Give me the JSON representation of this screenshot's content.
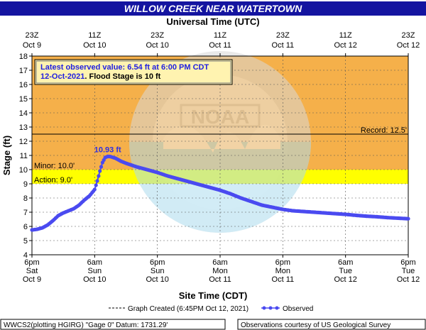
{
  "colors": {
    "title_bar": "#1414a0",
    "title_text": "#ffffff",
    "record_zone": "#f5b04a",
    "minor_zone": "#ffff00",
    "series": "#4a4af0",
    "ref_line": "#000000"
  },
  "icons": [
    "noaa-watermark-icon"
  ],
  "chart_data": {
    "type": "line",
    "title": "WILLOW CREEK NEAR WATERTOWN",
    "top_axis_title": "Universal Time (UTC)",
    "xlabel": "Site Time (CDT)",
    "ylabel": "Stage (ft)",
    "ylim": [
      4,
      18
    ],
    "yticks": [
      4,
      5,
      6,
      7,
      8,
      9,
      10,
      11,
      12,
      13,
      14,
      15,
      16,
      17,
      18
    ],
    "xlim_hours": [
      0,
      60
    ],
    "x_ticks_bottom": [
      {
        "h": 0,
        "l1": "6pm",
        "l2": "Sat",
        "l3": "Oct 9"
      },
      {
        "h": 12,
        "l1": "6am",
        "l2": "Sun",
        "l3": "Oct 10"
      },
      {
        "h": 24,
        "l1": "6pm",
        "l2": "Sun",
        "l3": "Oct 10"
      },
      {
        "h": 36,
        "l1": "6am",
        "l2": "Mon",
        "l3": "Oct 11"
      },
      {
        "h": 48,
        "l1": "6pm",
        "l2": "Mon",
        "l3": "Oct 11"
      },
      {
        "h": 60,
        "l1": "6am",
        "l2": "Tue",
        "l3": "Oct 12"
      },
      {
        "h": 72,
        "l1": "6pm",
        "l2": "Tue",
        "l3": "Oct 12"
      }
    ],
    "x_ticks_top": [
      {
        "h": 0,
        "l1": "23Z",
        "l2": "Oct  9"
      },
      {
        "h": 12,
        "l1": "11Z",
        "l2": "Oct 10"
      },
      {
        "h": 24,
        "l1": "23Z",
        "l2": "Oct 10"
      },
      {
        "h": 36,
        "l1": "11Z",
        "l2": "Oct 11"
      },
      {
        "h": 48,
        "l1": "23Z",
        "l2": "Oct 11"
      },
      {
        "h": 60,
        "l1": "11Z",
        "l2": "Oct 12"
      },
      {
        "h": 72,
        "l1": "23Z",
        "l2": "Oct 12"
      }
    ],
    "thresholds": {
      "action": {
        "value": 9.0,
        "label": "Action: 9.0'"
      },
      "minor": {
        "value": 10.0,
        "label": "Minor: 10.0'"
      },
      "record": {
        "value": 12.5,
        "label": "Record: 12.5'"
      }
    },
    "info_box": {
      "line1": "Latest observed value: 6.54 ft at 6:00 PM CDT",
      "line2_date": "12-Oct-2021",
      "line2_rest": ". Flood Stage is 10 ft"
    },
    "peak_label": "10.93 ft",
    "peak": {
      "x": 14.5,
      "y": 10.93
    },
    "legend": {
      "created": "Graph Created (6:45PM Oct 12, 2021)",
      "observed": "Observed"
    },
    "footer_left": "WWCS2(plotting HGIRG) \"Gage 0\" Datum: 1731.29'",
    "footer_right": "Observations courtesy of US Geological Survey",
    "series": [
      {
        "name": "Observed",
        "x_unit": "hours since 6pm CDT Oct 9",
        "points": [
          [
            0,
            5.75
          ],
          [
            1,
            5.8
          ],
          [
            2,
            5.9
          ],
          [
            3,
            6.1
          ],
          [
            4,
            6.4
          ],
          [
            5,
            6.75
          ],
          [
            6,
            6.95
          ],
          [
            7,
            7.1
          ],
          [
            8,
            7.25
          ],
          [
            9,
            7.5
          ],
          [
            10,
            7.85
          ],
          [
            11,
            8.15
          ],
          [
            12,
            8.6
          ],
          [
            12.5,
            9.2
          ],
          [
            13,
            9.9
          ],
          [
            13.5,
            10.5
          ],
          [
            14,
            10.85
          ],
          [
            14.5,
            10.93
          ],
          [
            15,
            10.92
          ],
          [
            16,
            10.8
          ],
          [
            17,
            10.6
          ],
          [
            18,
            10.45
          ],
          [
            20,
            10.2
          ],
          [
            22,
            10.0
          ],
          [
            24,
            9.8
          ],
          [
            26,
            9.55
          ],
          [
            28,
            9.35
          ],
          [
            30,
            9.15
          ],
          [
            32,
            8.95
          ],
          [
            34,
            8.75
          ],
          [
            36,
            8.55
          ],
          [
            38,
            8.3
          ],
          [
            40,
            8.0
          ],
          [
            42,
            7.75
          ],
          [
            44,
            7.5
          ],
          [
            46,
            7.35
          ],
          [
            48,
            7.2
          ],
          [
            50,
            7.1
          ],
          [
            52,
            7.05
          ],
          [
            54,
            7.0
          ],
          [
            56,
            6.95
          ],
          [
            58,
            6.9
          ],
          [
            60,
            6.85
          ],
          [
            62,
            6.78
          ],
          [
            64,
            6.72
          ],
          [
            66,
            6.68
          ],
          [
            68,
            6.62
          ],
          [
            70,
            6.58
          ],
          [
            72,
            6.54
          ]
        ]
      }
    ]
  }
}
